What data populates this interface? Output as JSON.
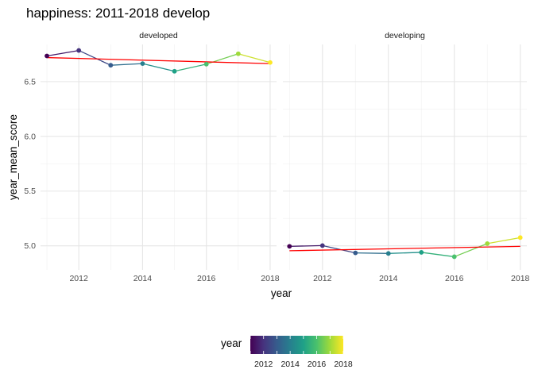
{
  "chart_data": {
    "type": "line",
    "title": "happiness: 2011-2018 develop",
    "xlabel": "year",
    "ylabel": "year_mean_score",
    "xlim": [
      2010.8,
      2018.2
    ],
    "ylim": [
      4.78,
      6.84
    ],
    "x_ticks": [
      2012,
      2014,
      2016,
      2018
    ],
    "y_ticks": [
      5.0,
      5.5,
      6.0,
      6.5
    ],
    "grid": true,
    "legend_position": "bottom",
    "facets": [
      {
        "name": "developed",
        "x": [
          2011,
          2012,
          2013,
          2014,
          2015,
          2016,
          2017,
          2018
        ],
        "y": [
          6.735,
          6.785,
          6.65,
          6.665,
          6.595,
          6.66,
          6.755,
          6.675
        ],
        "trend": {
          "x": [
            2011,
            2018
          ],
          "y": [
            6.72,
            6.665
          ]
        }
      },
      {
        "name": "developing",
        "x": [
          2011,
          2012,
          2013,
          2014,
          2015,
          2016,
          2017,
          2018
        ],
        "y": [
          4.995,
          5.002,
          4.935,
          4.93,
          4.94,
          4.9,
          5.02,
          5.075
        ],
        "trend": {
          "x": [
            2011,
            2018
          ],
          "y": [
            4.955,
            4.995
          ]
        }
      }
    ],
    "trend_color": "#ff0000",
    "color_scale": {
      "title": "year",
      "palette": "viridis",
      "range": [
        2011,
        2018
      ],
      "ticks": [
        2012,
        2014,
        2016,
        2018
      ],
      "colors": [
        "#440154",
        "#46337E",
        "#365C8D",
        "#277F8E",
        "#1FA187",
        "#4AC16D",
        "#9FDA3A",
        "#FDE725"
      ]
    }
  }
}
